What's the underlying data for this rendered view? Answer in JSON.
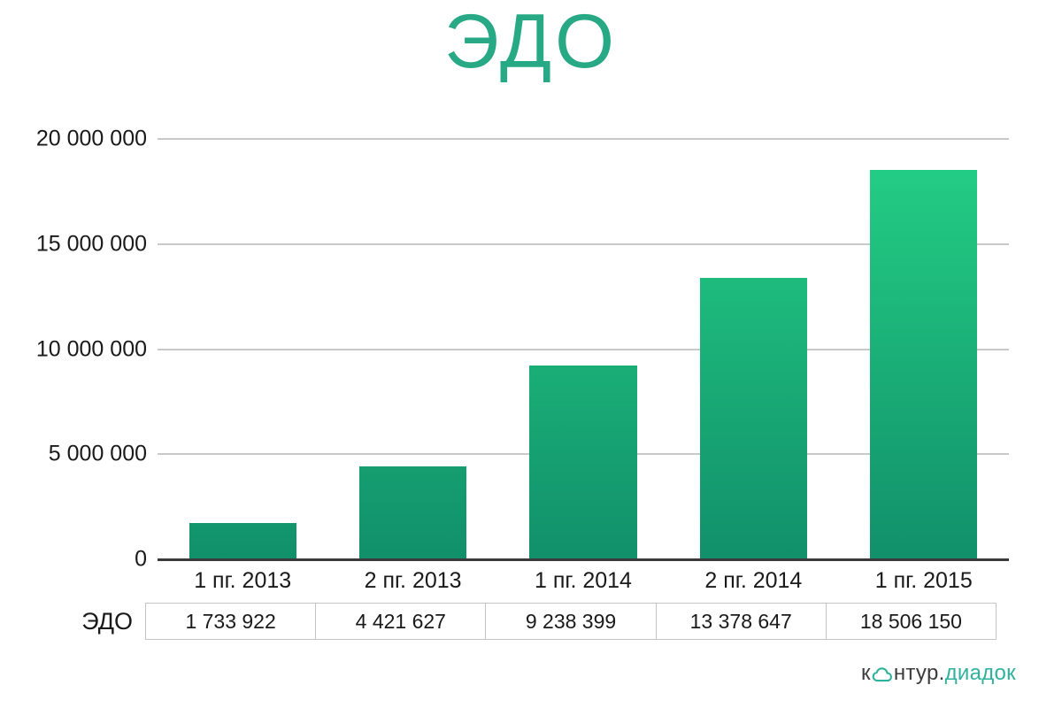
{
  "title": "ЭДО",
  "chart_data": {
    "type": "bar",
    "title": "ЭДО",
    "categories": [
      "1 пг. 2013",
      "2 пг. 2013",
      "1 пг. 2014",
      "2 пг. 2014",
      "1 пг. 2015"
    ],
    "series": [
      {
        "name": "ЭДО",
        "values": [
          1733922,
          4421627,
          9238399,
          13378647,
          18506150
        ]
      }
    ],
    "value_labels": [
      "1 733 922",
      "4 421 627",
      "9 238 399",
      "13 378 647",
      "18 506 150"
    ],
    "ylabel": "",
    "xlabel": "",
    "ylim": [
      0,
      20000000
    ],
    "y_tick_labels_top_to_bottom": [
      "20 000 000",
      "15 000 000",
      "10 000 000",
      "5 000 000",
      "0"
    ],
    "grid": true,
    "legend_position": "none",
    "bar_style": "vertical gradient, dark teal at baseline to bright green at top of scale"
  },
  "table": {
    "row_label": "ЭДО",
    "cells": [
      "1 733 922",
      "4 421 627",
      "9 238 399",
      "13 378 647",
      "18 506 150"
    ]
  },
  "logo": {
    "part1": "к",
    "part2": "нтур.",
    "part3": "диадок",
    "icon": "cloud-icon"
  },
  "colors": {
    "title": "#26A984",
    "bar_gradient_bottom": "#11906A",
    "bar_gradient_top": "#24D186",
    "grid": "#C9C9C9",
    "axis": "#3A3A3A",
    "text": "#1A1A1A",
    "table_border": "#C4C4C4",
    "logo_dark": "#3C3C3C",
    "logo_teal": "#2FB29C"
  }
}
